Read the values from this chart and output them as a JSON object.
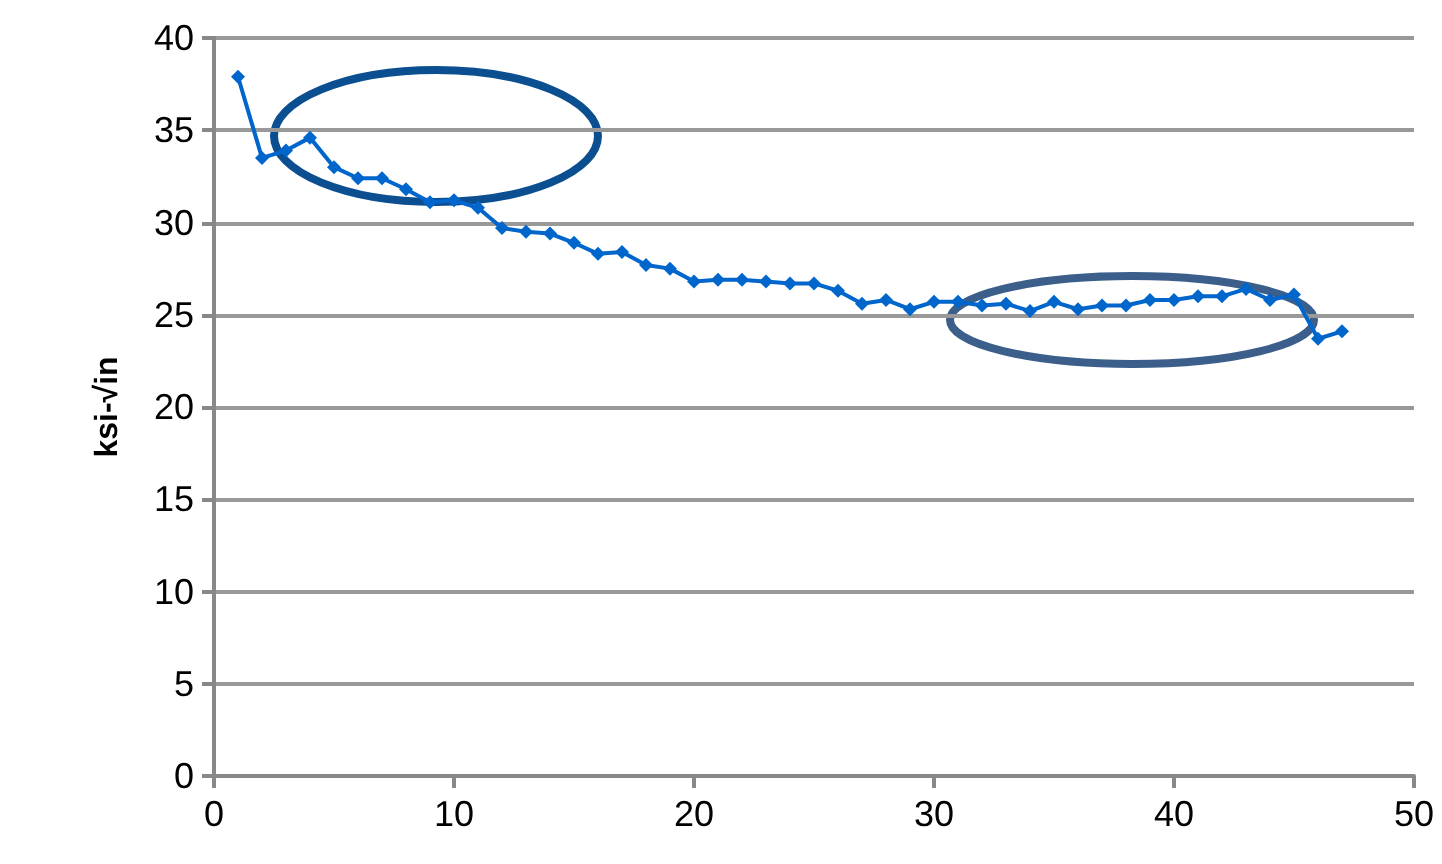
{
  "chart_data": {
    "type": "line",
    "ylabel": "ksi-√in",
    "x": [
      1,
      2,
      3,
      4,
      5,
      6,
      7,
      8,
      9,
      10,
      11,
      12,
      13,
      14,
      15,
      16,
      17,
      18,
      19,
      20,
      21,
      22,
      23,
      24,
      25,
      26,
      27,
      28,
      29,
      30,
      31,
      32,
      33,
      34,
      35,
      36,
      37,
      38,
      39,
      40,
      41,
      42,
      43,
      44,
      45,
      46,
      47
    ],
    "series": [
      {
        "color": "#0066cc",
        "values": [
          37.9,
          33.5,
          33.9,
          34.6,
          33.0,
          32.4,
          32.4,
          31.8,
          31.1,
          31.2,
          30.8,
          29.7,
          29.5,
          29.4,
          28.9,
          28.3,
          28.4,
          27.7,
          27.5,
          26.8,
          26.9,
          26.9,
          26.8,
          26.7,
          26.7,
          26.3,
          25.6,
          25.8,
          25.3,
          25.7,
          25.7,
          25.5,
          25.6,
          25.2,
          25.7,
          25.3,
          25.5,
          25.5,
          25.8,
          25.8,
          26.0,
          26.0,
          26.4,
          25.8,
          26.1,
          23.7,
          24.1
        ]
      }
    ],
    "xlim": [
      0,
      50
    ],
    "xticks": [
      0,
      10,
      20,
      30,
      40,
      50
    ],
    "ylim": [
      0,
      40
    ],
    "yticks": [
      0,
      5,
      10,
      15,
      20,
      25,
      30,
      35,
      40
    ],
    "grid": "y",
    "marker": "diamond",
    "line_style": "solid",
    "legend": false
  }
}
